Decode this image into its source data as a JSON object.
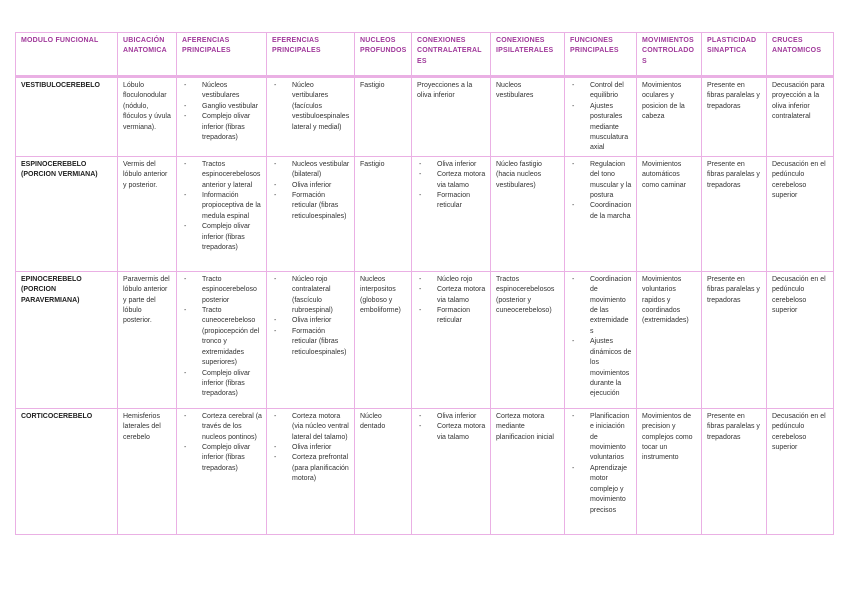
{
  "colors": {
    "header_text": "#a0399a",
    "border": "#eab0e4"
  },
  "headers": [
    "MODULO FUNCIONAL",
    "UBICACIÓN ANATOMICA",
    "AFERENCIAS PRINCIPALES",
    "EFERENCIAS PRINCIPALES",
    "NUCLEOS PROFUNDOS",
    "CONEXIONES CONTRALATERALES",
    "CONEXIONES IPSILATERALES",
    "FUNCIONES PRINCIPALES",
    "MOVIMIENTOS CONTROLADOS",
    "PLASTICIDAD SINAPTICA",
    "CRUCES ANATOMICOS"
  ],
  "rows": [
    {
      "cells": [
        {
          "text": "VESTIBULOCEREBELO"
        },
        {
          "text": "Lóbulo floculonodular (nódulo, flóculos y úvula vermiana)."
        },
        {
          "items": [
            "Núcleos vestibulares",
            "Ganglio vestibular",
            "Complejo olivar inferior (fibras trepadoras)"
          ]
        },
        {
          "items": [
            "Núcleo vertibulares (facículos vestibuloespinales lateral y medial)"
          ]
        },
        {
          "text": "Fastigio"
        },
        {
          "text": "Proyecciones a la oliva inferior"
        },
        {
          "text": "Nucleos vestibulares"
        },
        {
          "items": [
            "Control del equilibrio",
            "Ajustes posturales mediante musculatura axial"
          ]
        },
        {
          "text": "Movimientos oculares y posicion de la cabeza"
        },
        {
          "text": "Presente en fibras paralelas y trepadoras"
        },
        {
          "text": "Decusación para proyección a la oliva inferior contralateral"
        }
      ]
    },
    {
      "cells": [
        {
          "text": "ESPINOCEREBELO (PORCION VERMIANA)"
        },
        {
          "text": "Vermis del lóbulo anterior y posterior."
        },
        {
          "items": [
            "Tractos espinocerebelosos anterior y lateral",
            "Información propioceptiva de la medula espinal",
            "Complejo olivar inferior (fibras trepadoras)"
          ]
        },
        {
          "items": [
            "Nucleos vestibular (bilateral)",
            "Oliva inferior",
            "Formación reticular (fibras reticuloespinales)"
          ]
        },
        {
          "text": "Fastigio"
        },
        {
          "items": [
            "Oliva inferior",
            "Corteza motora via talamo",
            "Formacion reticular"
          ]
        },
        {
          "text": "Núcleo fastigio (hacia nucleos vestibulares)"
        },
        {
          "items": [
            "Regulacion del tono muscular y la postura",
            "Coordinacion de la marcha"
          ]
        },
        {
          "text": "Movimientos automáticos como caminar"
        },
        {
          "text": "Presente en fibras paralelas y trepadoras"
        },
        {
          "text": "Decusación en el pedúnculo cerebeloso superior"
        }
      ]
    },
    {
      "cells": [
        {
          "text": "EPINOCEREBELO (PORCION PARAVERMIANA)"
        },
        {
          "text": "Paravermis del lóbulo anterior y parte del lóbulo posterior."
        },
        {
          "items": [
            "Tracto espinocerebeloso posterior",
            "Tracto cuneocerebeloso (propiocepción del tronco y extremidades superiores)",
            "Complejo olivar inferior (fibras trepadoras)"
          ]
        },
        {
          "items": [
            "Núcleo rojo contralateral (fascículo rubroespinal)",
            "Oliva inferior",
            "Formación reticular (fibras reticuloespinales)"
          ]
        },
        {
          "text": "Nucleos interpositos (globoso y emboliforme)"
        },
        {
          "items": [
            "Núcleo rojo",
            "Corteza motora via talamo",
            "Formacion reticular"
          ]
        },
        {
          "text": "Tractos espinocerebelosos (posterior y cuneocerebeloso)"
        },
        {
          "items": [
            "Coordinacion de movimiento de las extremidades",
            "Ajustes dinámicos de los movimientos durante la ejecución"
          ]
        },
        {
          "text": "Movimientos voluntarios rapidos y coordinados (extremidades)"
        },
        {
          "text": "Presente en fibras paralelas y trepadoras"
        },
        {
          "text": "Decusación en el pedúnculo cerebeloso superior"
        }
      ]
    },
    {
      "cells": [
        {
          "text": "CORTICOCEREBELO"
        },
        {
          "text": "Hemisferios laterales del cerebelo"
        },
        {
          "items": [
            "Corteza cerebral (a través de los nucleos pontinos)",
            "Complejo olivar inferior (fibras trepadoras)"
          ]
        },
        {
          "items": [
            "Corteza motora (via núcleo ventral lateral del talamo)",
            "Oliva inferior",
            "Corteza prefrontal (para planificación motora)"
          ]
        },
        {
          "text": "Núcleo dentado"
        },
        {
          "items": [
            "Oliva inferior",
            "Corteza motora via talamo"
          ]
        },
        {
          "text": "Corteza motora mediante planificacion inicial"
        },
        {
          "items": [
            "Planificacion e iniciación de movimiento voluntarios",
            "Aprendizaje motor complejo y movimiento precisos"
          ]
        },
        {
          "text": "Movimientos de precision y complejos como tocar un instrumento"
        },
        {
          "text": "Presente en fibras paralelas y trepadoras"
        },
        {
          "text": "Decusación en el pedúnculo cerebeloso superior"
        }
      ]
    }
  ]
}
